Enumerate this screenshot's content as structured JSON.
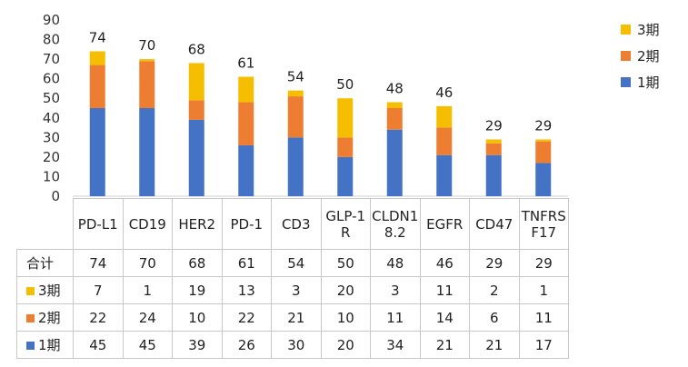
{
  "chart_data": {
    "type": "bar",
    "stacked": true,
    "categories": [
      "PD-L1",
      "CD19",
      "HER2",
      "PD-1",
      "CD3",
      "GLP-1R",
      "CLDN18.2",
      "EGFR",
      "CD47",
      "TNFRSF17"
    ],
    "category_display": [
      "PD-L1",
      "CD19",
      "HER2",
      "PD-1",
      "CD3",
      "GLP-1\nR",
      "CLDN1\n8.2",
      "EGFR",
      "CD47",
      "TNFRS\nF17"
    ],
    "series": [
      {
        "name": "1期",
        "values": [
          45,
          45,
          39,
          26,
          30,
          20,
          34,
          21,
          21,
          17
        ],
        "color": "#4472C4"
      },
      {
        "name": "2期",
        "values": [
          22,
          24,
          10,
          22,
          21,
          10,
          11,
          14,
          6,
          11
        ],
        "color": "#ED7D31"
      },
      {
        "name": "3期",
        "values": [
          7,
          1,
          19,
          13,
          3,
          20,
          3,
          11,
          2,
          1
        ],
        "color": "#F5BE00"
      }
    ],
    "totals": [
      74,
      70,
      68,
      61,
      54,
      50,
      48,
      46,
      29,
      29
    ],
    "total_row_label": "合计",
    "ylim": [
      0,
      90
    ],
    "yticks": [
      0,
      10,
      20,
      30,
      40,
      50,
      60,
      70,
      80,
      90
    ],
    "grid": false,
    "legend_position": "top-right",
    "title": "",
    "xlabel": "",
    "ylabel": ""
  }
}
